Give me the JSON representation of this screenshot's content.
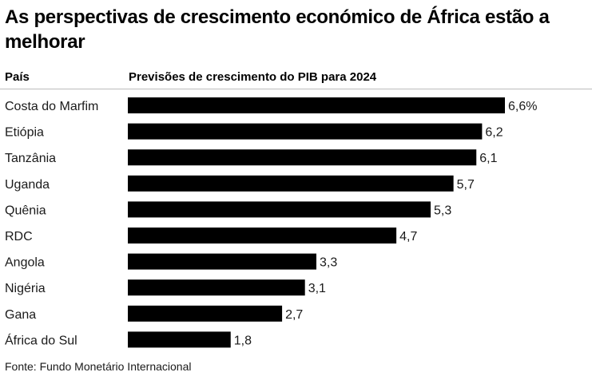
{
  "title": "As perspectivas de crescimento económico de África estão a melhorar",
  "header": {
    "country_label": "País",
    "value_label": "Previsões de crescimento do PIB para 2024"
  },
  "source": "Fonte: Fundo Monetário Internacional",
  "colors": {
    "bar": "#000000",
    "text": "#1a1a1a",
    "divider": "#bbbbbb"
  },
  "chart_data": {
    "type": "bar",
    "orientation": "horizontal",
    "categories": [
      "Costa do Marfim",
      "Etiópia",
      "Tanzânia",
      "Uganda",
      "Quênia",
      "RDC",
      "Angola",
      "Nigéria",
      "Gana",
      "África do Sul"
    ],
    "values": [
      6.6,
      6.2,
      6.1,
      5.7,
      5.3,
      4.7,
      3.3,
      3.1,
      2.7,
      1.8
    ],
    "value_labels": [
      "6,6%",
      "6,2",
      "6,1",
      "5,7",
      "5,3",
      "4,7",
      "3,3",
      "3,1",
      "2,7",
      "1,8"
    ],
    "xlim": [
      0,
      6.6
    ],
    "grid": false,
    "legend": false
  }
}
